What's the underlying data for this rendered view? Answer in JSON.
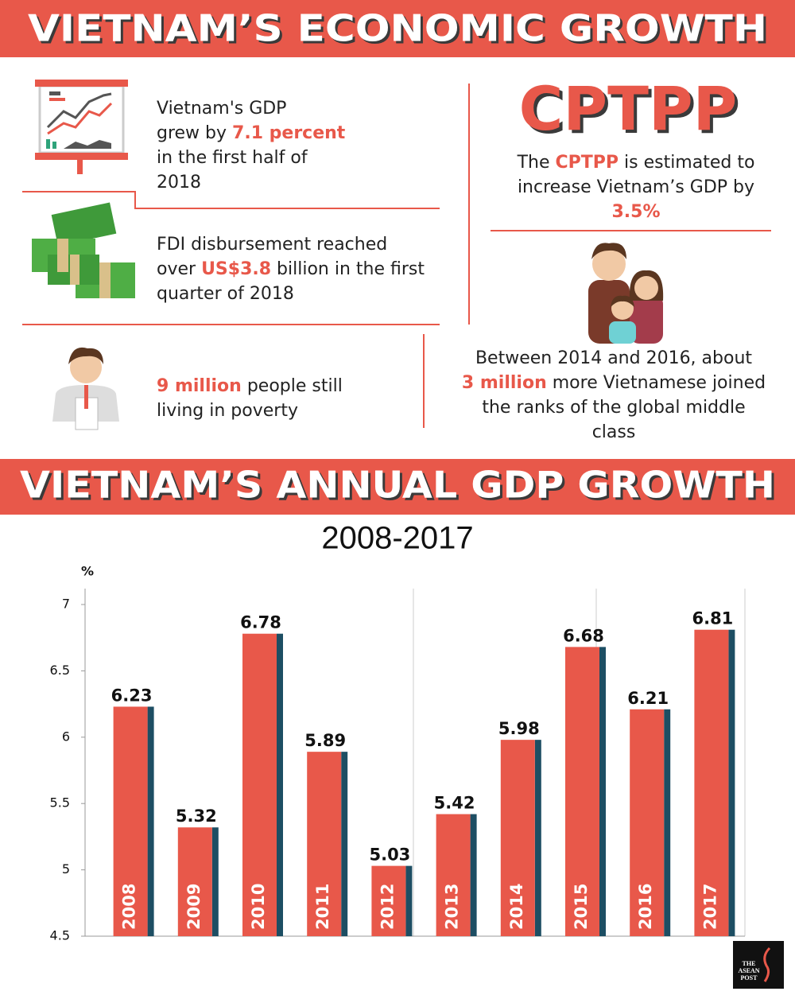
{
  "header": {
    "title": "VIETNAM’S ECONOMIC GROWTH"
  },
  "facts": [
    {
      "lines": [
        [
          {
            "text": "Vietnam's GDP"
          }
        ],
        [
          {
            "text": "grew by "
          },
          {
            "text": "7.1 percent",
            "highlight": true
          }
        ],
        [
          {
            "text": "in the first half of"
          }
        ],
        [
          {
            "text": "2018"
          }
        ]
      ]
    },
    {
      "lines": [
        [
          {
            "text": "FDI disbursement reached"
          }
        ],
        [
          {
            "text": "over "
          },
          {
            "text": "US$3.8",
            "highlight": true
          },
          {
            "text": " billion in the first"
          }
        ],
        [
          {
            "text": "quarter of 2018"
          }
        ]
      ]
    },
    {
      "lines": [
        [
          {
            "text": "9 million",
            "highlight": true
          },
          {
            "text": " people still"
          }
        ],
        [
          {
            "text": "living in poverty"
          }
        ]
      ]
    }
  ],
  "cptpp": {
    "heading": "CPTPP",
    "lines": [
      [
        {
          "text": "The "
        },
        {
          "text": "CPTPP",
          "highlight": true
        },
        {
          "text": " is estimated to"
        }
      ],
      [
        {
          "text": "increase Vietnam’s GDP by"
        }
      ],
      [
        {
          "text": "3.5%",
          "highlight": true
        }
      ]
    ]
  },
  "middle_class": {
    "lines": [
      [
        {
          "text": "Between 2014 and 2016, about"
        }
      ],
      [
        {
          "text": "3 million",
          "highlight": true
        },
        {
          "text": " more Vietnamese joined"
        }
      ],
      [
        {
          "text": "the ranks of the global middle"
        }
      ],
      [
        {
          "text": "class"
        }
      ]
    ]
  },
  "chart_data": {
    "type": "bar",
    "title": "VIETNAM’S ANNUAL GDP GROWTH",
    "subtitle": "2008-2017",
    "ylabel": "%",
    "categories": [
      "2008",
      "2009",
      "2010",
      "2011",
      "2012",
      "2013",
      "2014",
      "2015",
      "2016",
      "2017"
    ],
    "values": [
      6.23,
      5.32,
      6.78,
      5.89,
      5.03,
      5.42,
      5.98,
      6.68,
      6.21,
      6.81
    ],
    "color": "#e8584a",
    "shadow_color": "#1d4e63",
    "ylim": [
      4.5,
      7.12
    ],
    "yticks": [
      4.5,
      5,
      5.5,
      6,
      6.5,
      7
    ]
  },
  "logo": {
    "lines": [
      "THE",
      "ASEAN",
      "POST"
    ]
  }
}
